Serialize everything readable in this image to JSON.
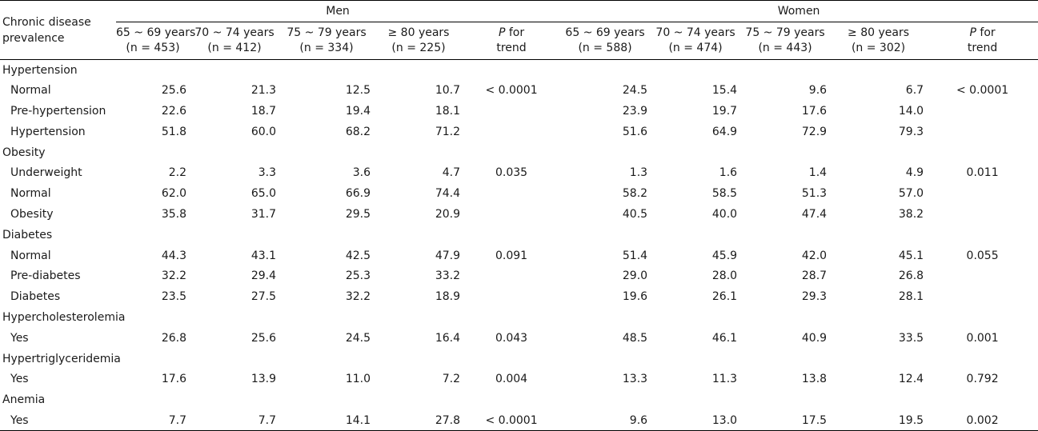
{
  "header": {
    "corner": [
      "Chronic disease",
      "prevalence"
    ],
    "groups": [
      "Men",
      "Women"
    ],
    "age_groups": [
      {
        "label": "65 ~ 69 years",
        "n": "(n = 453)"
      },
      {
        "label": "70 ~ 74 years",
        "n": "(n = 412)"
      },
      {
        "label": "75 ~ 79 years",
        "n": "(n = 334)"
      },
      {
        "label": "≥ 80 years",
        "n": "(n = 225)"
      },
      {
        "label": "65 ~ 69 years",
        "n": "(n = 588)"
      },
      {
        "label": "70 ~ 74 years",
        "n": "(n = 474)"
      },
      {
        "label": "75 ~ 79 years",
        "n": "(n = 443)"
      },
      {
        "label": "≥ 80 years",
        "n": "(n = 302)"
      }
    ],
    "p_trend": {
      "p": "P",
      "rest": " for",
      "line2": "trend"
    }
  },
  "rows": [
    {
      "type": "section",
      "label": "Hypertension"
    },
    {
      "type": "data",
      "label": "Normal",
      "men": [
        "25.6",
        "21.3",
        "12.5",
        "10.7"
      ],
      "men_p": "< 0.0001",
      "women": [
        "24.5",
        "15.4",
        "9.6",
        "6.7"
      ],
      "women_p": "< 0.0001"
    },
    {
      "type": "data",
      "label": "Pre-hypertension",
      "men": [
        "22.6",
        "18.7",
        "19.4",
        "18.1"
      ],
      "men_p": "",
      "women": [
        "23.9",
        "19.7",
        "17.6",
        "14.0"
      ],
      "women_p": ""
    },
    {
      "type": "data",
      "label": "Hypertension",
      "men": [
        "51.8",
        "60.0",
        "68.2",
        "71.2"
      ],
      "men_p": "",
      "women": [
        "51.6",
        "64.9",
        "72.9",
        "79.3"
      ],
      "women_p": ""
    },
    {
      "type": "section",
      "label": "Obesity"
    },
    {
      "type": "data",
      "label": "Underweight",
      "men": [
        "2.2",
        "3.3",
        "3.6",
        "4.7"
      ],
      "men_p": "0.035",
      "women": [
        "1.3",
        "1.6",
        "1.4",
        "4.9"
      ],
      "women_p": "0.011"
    },
    {
      "type": "data",
      "label": "Normal",
      "men": [
        "62.0",
        "65.0",
        "66.9",
        "74.4"
      ],
      "men_p": "",
      "women": [
        "58.2",
        "58.5",
        "51.3",
        "57.0"
      ],
      "women_p": ""
    },
    {
      "type": "data",
      "label": "Obesity",
      "men": [
        "35.8",
        "31.7",
        "29.5",
        "20.9"
      ],
      "men_p": "",
      "women": [
        "40.5",
        "40.0",
        "47.4",
        "38.2"
      ],
      "women_p": ""
    },
    {
      "type": "section",
      "label": "Diabetes"
    },
    {
      "type": "data",
      "label": "Normal",
      "men": [
        "44.3",
        "43.1",
        "42.5",
        "47.9"
      ],
      "men_p": "0.091",
      "women": [
        "51.4",
        "45.9",
        "42.0",
        "45.1"
      ],
      "women_p": "0.055"
    },
    {
      "type": "data",
      "label": "Pre-diabetes",
      "men": [
        "32.2",
        "29.4",
        "25.3",
        "33.2"
      ],
      "men_p": "",
      "women": [
        "29.0",
        "28.0",
        "28.7",
        "26.8"
      ],
      "women_p": ""
    },
    {
      "type": "data",
      "label": "Diabetes",
      "men": [
        "23.5",
        "27.5",
        "32.2",
        "18.9"
      ],
      "men_p": "",
      "women": [
        "19.6",
        "26.1",
        "29.3",
        "28.1"
      ],
      "women_p": ""
    },
    {
      "type": "section",
      "label": "Hypercholesterolemia"
    },
    {
      "type": "data",
      "label": "Yes",
      "men": [
        "26.8",
        "25.6",
        "24.5",
        "16.4"
      ],
      "men_p": "0.043",
      "women": [
        "48.5",
        "46.1",
        "40.9",
        "33.5"
      ],
      "women_p": "0.001"
    },
    {
      "type": "section",
      "label": "Hypertriglyceridemia"
    },
    {
      "type": "data",
      "label": "Yes",
      "men": [
        "17.6",
        "13.9",
        "11.0",
        "7.2"
      ],
      "men_p": "0.004",
      "women": [
        "13.3",
        "11.3",
        "13.8",
        "12.4"
      ],
      "women_p": "0.792"
    },
    {
      "type": "section",
      "label": "Anemia"
    },
    {
      "type": "data",
      "label": "Yes",
      "men": [
        "7.7",
        "7.7",
        "14.1",
        "27.8"
      ],
      "men_p": "< 0.0001",
      "women": [
        "9.6",
        "13.0",
        "17.5",
        "19.5"
      ],
      "women_p": "0.002"
    }
  ]
}
